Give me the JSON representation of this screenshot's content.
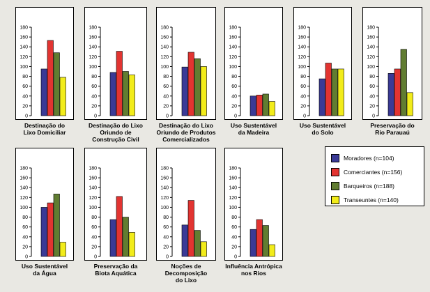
{
  "colors": {
    "Moradores": "#3a3a96",
    "Comerciantes": "#e23431",
    "Barqueiros": "#617d31",
    "Transeuntes": "#f2ec1a"
  },
  "legend": [
    {
      "key": "Moradores",
      "label": "Moradores (n=104)"
    },
    {
      "key": "Comerciantes",
      "label": "Comerciantes (n=156)"
    },
    {
      "key": "Barqueiros",
      "label": "Barqueiros (n=188)"
    },
    {
      "key": "Transeuntes",
      "label": "Transeuntes (n=140)"
    }
  ],
  "chart_data": [
    {
      "type": "bar",
      "title": "Destinação do\nLixo Domiciliar",
      "categories": [
        "Moradores",
        "Comerciantes",
        "Barqueiros",
        "Transeuntes"
      ],
      "values": [
        95,
        153,
        128,
        78
      ],
      "ylim": [
        0,
        180
      ],
      "yticks": [
        0,
        20,
        40,
        60,
        80,
        100,
        120,
        140,
        160,
        180
      ]
    },
    {
      "type": "bar",
      "title": "Destinação do Lixo\nOriundo de\nConstrução Civil",
      "categories": [
        "Moradores",
        "Comerciantes",
        "Barqueiros",
        "Transeuntes"
      ],
      "values": [
        88,
        131,
        90,
        83
      ],
      "ylim": [
        0,
        180
      ],
      "yticks": [
        0,
        20,
        40,
        60,
        80,
        100,
        120,
        140,
        160,
        180
      ]
    },
    {
      "type": "bar",
      "title": "Destinação do Lixo\nOriundo de Produtos\nComercializados",
      "categories": [
        "Moradores",
        "Comerciantes",
        "Barqueiros",
        "Transeuntes"
      ],
      "values": [
        99,
        129,
        116,
        100
      ],
      "ylim": [
        0,
        180
      ],
      "yticks": [
        0,
        20,
        40,
        60,
        80,
        100,
        120,
        140,
        160,
        180
      ]
    },
    {
      "type": "bar",
      "title": "Uso Sustentável\nda Madeira",
      "categories": [
        "Moradores",
        "Comerciantes",
        "Barqueiros",
        "Transeuntes"
      ],
      "values": [
        40,
        42,
        44,
        29
      ],
      "ylim": [
        0,
        180
      ],
      "yticks": [
        0,
        20,
        40,
        60,
        80,
        100,
        120,
        140,
        160,
        180
      ]
    },
    {
      "type": "bar",
      "title": "Uso Sustentável\ndo Solo",
      "categories": [
        "Moradores",
        "Comerciantes",
        "Barqueiros",
        "Transeuntes"
      ],
      "values": [
        75,
        107,
        95,
        95
      ],
      "ylim": [
        0,
        180
      ],
      "yticks": [
        0,
        20,
        40,
        60,
        80,
        100,
        120,
        140,
        160,
        180
      ]
    },
    {
      "type": "bar",
      "title": "Preservação do\nRio Parauaú",
      "categories": [
        "Moradores",
        "Comerciantes",
        "Barqueiros",
        "Transeuntes"
      ],
      "values": [
        86,
        95,
        135,
        47
      ],
      "ylim": [
        0,
        180
      ],
      "yticks": [
        0,
        20,
        40,
        60,
        80,
        100,
        120,
        140,
        160,
        180
      ]
    },
    {
      "type": "bar",
      "title": "Uso Sustentável\nda Água",
      "categories": [
        "Moradores",
        "Comerciantes",
        "Barqueiros",
        "Transeuntes"
      ],
      "values": [
        100,
        109,
        127,
        29
      ],
      "ylim": [
        0,
        180
      ],
      "yticks": [
        0,
        20,
        40,
        60,
        80,
        100,
        120,
        140,
        160,
        180
      ]
    },
    {
      "type": "bar",
      "title": "Preservação da\nBiota Aquática",
      "categories": [
        "Moradores",
        "Comerciantes",
        "Barqueiros",
        "Transeuntes"
      ],
      "values": [
        75,
        122,
        80,
        49
      ],
      "ylim": [
        0,
        180
      ],
      "yticks": [
        0,
        20,
        40,
        60,
        80,
        100,
        120,
        140,
        160,
        180
      ]
    },
    {
      "type": "bar",
      "title": "Noções de\nDecomposição\ndo Lixo",
      "categories": [
        "Moradores",
        "Comerciantes",
        "Barqueiros",
        "Transeuntes"
      ],
      "values": [
        64,
        114,
        53,
        30
      ],
      "ylim": [
        0,
        180
      ],
      "yticks": [
        0,
        20,
        40,
        60,
        80,
        100,
        120,
        140,
        160,
        180
      ]
    },
    {
      "type": "bar",
      "title": "Influência Antrópica\nnos Rios",
      "categories": [
        "Moradores",
        "Comerciantes",
        "Barqueiros",
        "Transeuntes"
      ],
      "values": [
        55,
        75,
        63,
        24
      ],
      "ylim": [
        0,
        180
      ],
      "yticks": [
        0,
        20,
        40,
        60,
        80,
        100,
        120,
        140,
        160,
        180
      ]
    }
  ]
}
